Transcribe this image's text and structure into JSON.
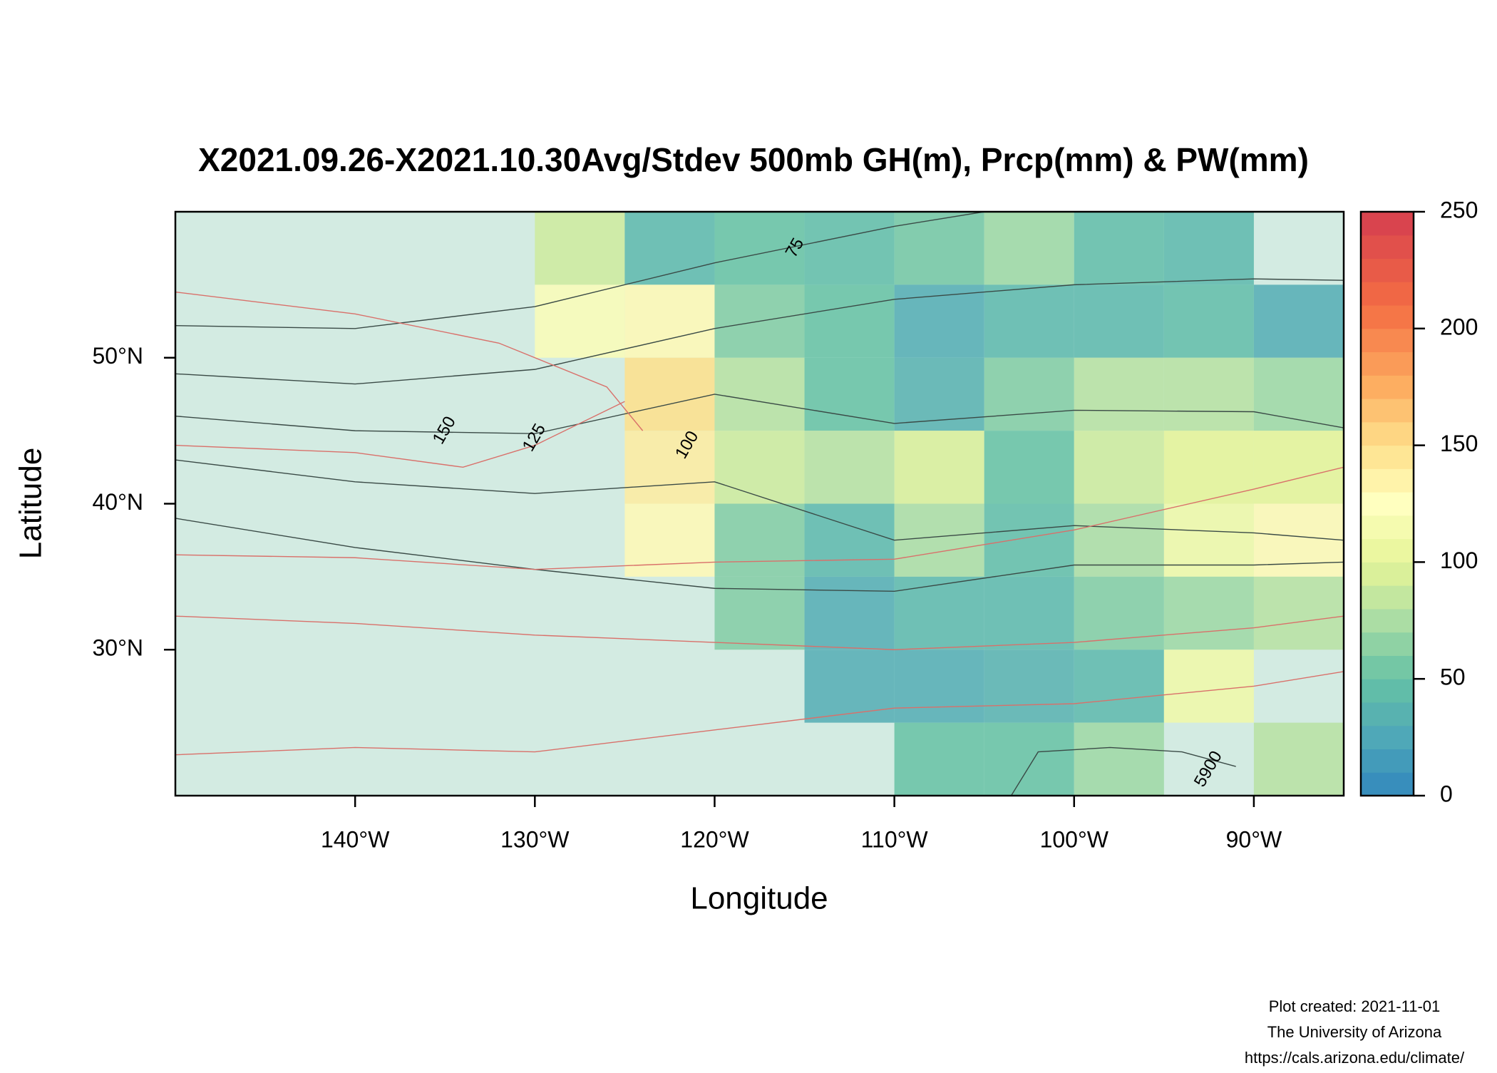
{
  "chart_data": {
    "type": "heatmap",
    "title": "X2021.09.26-X2021.10.30Avg/Stdev 500mb GH(m), Prcp(mm) & PW(mm)",
    "xlabel": "Longitude",
    "ylabel": "Latitude",
    "xlim": [
      -150,
      -85
    ],
    "ylim": [
      20,
      60
    ],
    "xticks": [
      {
        "value": -140,
        "label": "140°W"
      },
      {
        "value": -130,
        "label": "130°W"
      },
      {
        "value": -120,
        "label": "120°W"
      },
      {
        "value": -110,
        "label": "110°W"
      },
      {
        "value": -100,
        "label": "100°W"
      },
      {
        "value": -90,
        "label": "90°W"
      }
    ],
    "yticks": [
      {
        "value": 30,
        "label": "30°N"
      },
      {
        "value": 40,
        "label": "40°N"
      },
      {
        "value": 50,
        "label": "50°N"
      }
    ],
    "x": [
      -147.5,
      -142.5,
      -137.5,
      -132.5,
      -127.5,
      -122.5,
      -117.5,
      -112.5,
      -107.5,
      -102.5,
      -97.5,
      -92.5,
      -87.5
    ],
    "y": [
      57.5,
      52.5,
      47.5,
      42.5,
      37.5,
      32.5,
      27.5,
      22.5
    ],
    "values": [
      [
        null,
        null,
        null,
        null,
        90,
        40,
        50,
        45,
        55,
        70,
        45,
        40,
        null
      ],
      [
        null,
        null,
        null,
        null,
        120,
        130,
        60,
        50,
        30,
        40,
        40,
        45,
        30
      ],
      [
        null,
        null,
        null,
        null,
        null,
        150,
        80,
        50,
        35,
        60,
        80,
        80,
        70
      ],
      [
        null,
        null,
        null,
        null,
        null,
        140,
        90,
        80,
        95,
        50,
        90,
        100,
        100
      ],
      [
        null,
        null,
        null,
        null,
        null,
        130,
        60,
        40,
        75,
        45,
        75,
        110,
        130
      ],
      [
        null,
        null,
        null,
        null,
        null,
        null,
        60,
        30,
        40,
        40,
        60,
        70,
        80
      ],
      [
        null,
        null,
        null,
        null,
        null,
        null,
        null,
        30,
        30,
        35,
        40,
        110,
        null
      ],
      [
        null,
        null,
        null,
        null,
        null,
        null,
        null,
        null,
        50,
        50,
        70,
        null,
        80
      ]
    ],
    "na_color": "#d3ebe2",
    "colorbar": {
      "lim": [
        0,
        250
      ],
      "ticks": [
        0,
        50,
        100,
        150,
        200,
        250
      ],
      "step": 10,
      "stops": [
        {
          "value": 0,
          "color": "#3288bd"
        },
        {
          "value": 25,
          "color": "#4fa8b8"
        },
        {
          "value": 50,
          "color": "#66c2a5"
        },
        {
          "value": 75,
          "color": "#abdda4"
        },
        {
          "value": 100,
          "color": "#e6f598"
        },
        {
          "value": 125,
          "color": "#ffffbf"
        },
        {
          "value": 150,
          "color": "#fee08b"
        },
        {
          "value": 175,
          "color": "#fdae61"
        },
        {
          "value": 210,
          "color": "#f46d43"
        },
        {
          "value": 250,
          "color": "#d53e4f"
        }
      ]
    },
    "contours": [
      {
        "color": "#3a4a46",
        "x": [
          -150,
          -140,
          -130,
          -120,
          -110,
          -105
        ],
        "y": [
          52.2,
          52,
          53.5,
          56.5,
          59,
          60
        ]
      },
      {
        "color": "#3a4a46",
        "x": [
          -150,
          -140,
          -130,
          -120,
          -110,
          -100,
          -90,
          -85
        ],
        "y": [
          48.9,
          48.2,
          49.2,
          52,
          54,
          55,
          55.4,
          55.3
        ]
      },
      {
        "color": "#3a4a46",
        "x": [
          -150,
          -140,
          -130,
          -120,
          -110,
          -100,
          -90,
          -85
        ],
        "y": [
          46,
          45,
          44.8,
          47.5,
          45.5,
          46.4,
          46.3,
          45.2
        ]
      },
      {
        "color": "#3a4a46",
        "x": [
          -150,
          -140,
          -130,
          -120,
          -110,
          -100,
          -90,
          -85
        ],
        "y": [
          43,
          41.5,
          40.7,
          41.5,
          37.5,
          38.5,
          38,
          37.5
        ]
      },
      {
        "color": "#3a4a46",
        "x": [
          -150,
          -140,
          -130,
          -120,
          -110,
          -100,
          -90,
          -85
        ],
        "y": [
          39,
          37,
          35.5,
          34.2,
          34,
          35.8,
          35.8,
          36
        ]
      },
      {
        "color": "#3a4a46",
        "x": [
          -103.5,
          -102,
          -98,
          -94,
          -91
        ],
        "y": [
          20,
          23,
          23.3,
          23,
          22
        ]
      },
      {
        "color": "#d9706a",
        "x": [
          -150,
          -140,
          -132,
          -126,
          -124
        ],
        "y": [
          54.5,
          53,
          51,
          48,
          45
        ]
      },
      {
        "color": "#d9706a",
        "x": [
          -150,
          -140,
          -134,
          -130,
          -125
        ],
        "y": [
          44,
          43.5,
          42.5,
          44,
          47
        ]
      },
      {
        "color": "#d9706a",
        "x": [
          -150,
          -140,
          -130,
          -120,
          -110,
          -100,
          -90,
          -85
        ],
        "y": [
          36.5,
          36.3,
          35.5,
          36,
          36.2,
          38.2,
          41,
          42.5
        ]
      },
      {
        "color": "#d9706a",
        "x": [
          -150,
          -140,
          -130,
          -120,
          -110,
          -100,
          -90,
          -85
        ],
        "y": [
          32.3,
          31.8,
          31,
          30.5,
          30,
          30.5,
          31.5,
          32.3
        ]
      },
      {
        "color": "#d9706a",
        "x": [
          -150,
          -140,
          -130,
          -120,
          -110,
          -100,
          -90,
          -85
        ],
        "y": [
          22.8,
          23.3,
          23,
          24.5,
          26,
          26.3,
          27.5,
          28.5
        ]
      }
    ],
    "contour_labels": [
      {
        "text": "75",
        "x": -115.5,
        "y": 57.5
      },
      {
        "text": "100",
        "x": -121.5,
        "y": 44
      },
      {
        "text": "125",
        "x": -130,
        "y": 44.5
      },
      {
        "text": "150",
        "x": -135,
        "y": 45
      },
      {
        "text": "5900",
        "x": -92.5,
        "y": 21.8
      }
    ],
    "footer": [
      "Plot created: 2021-11-01",
      "The University of Arizona",
      "https://cals.arizona.edu/climate/"
    ]
  }
}
